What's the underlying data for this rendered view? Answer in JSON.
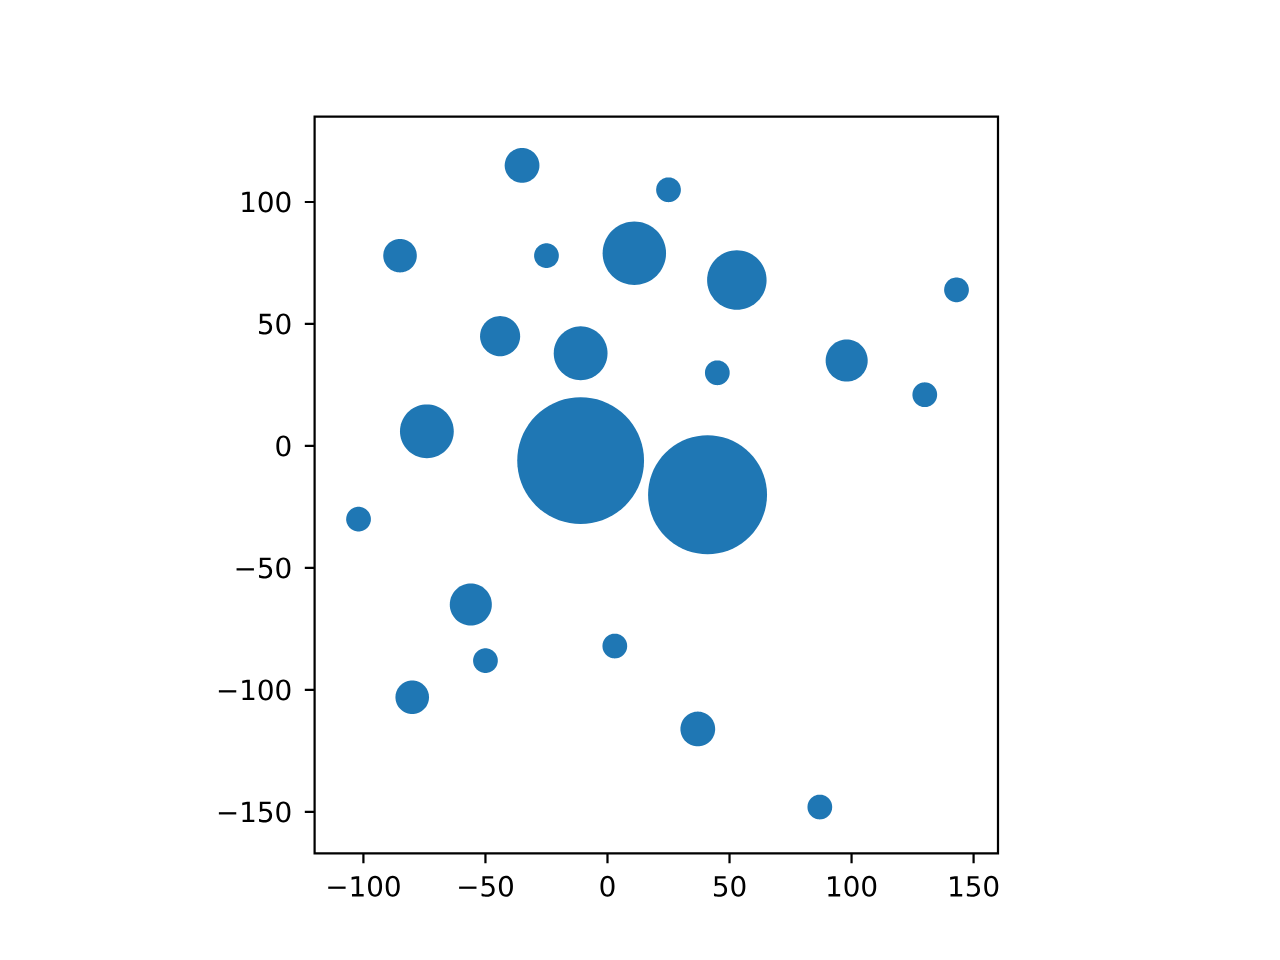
{
  "chart_data": {
    "type": "bubble",
    "x": [
      -35,
      -85,
      -25,
      11,
      -44,
      -11,
      -74,
      -11,
      25,
      53,
      143,
      45,
      98,
      130,
      41,
      -102,
      -56,
      -50,
      -80,
      3,
      37,
      87
    ],
    "values": [
      115,
      78,
      78,
      79,
      45,
      38,
      6,
      -6,
      105,
      68,
      64,
      30,
      35,
      21,
      -20,
      -30,
      -65,
      -88,
      -103,
      -82,
      -116,
      -148
    ],
    "sizes": [
      0.075,
      0.07,
      0.038,
      0.25,
      0.1,
      0.18,
      0.18,
      1,
      0.038,
      0.22,
      0.038,
      0.038,
      0.11,
      0.038,
      0.88,
      0.038,
      0.11,
      0.038,
      0.07,
      0.038,
      0.075,
      0.038
    ],
    "color": "#1f77b4",
    "marker": "circle",
    "xlim": [
      -120,
      160
    ],
    "ylim": [
      -167,
      135
    ],
    "xticks": [
      {
        "value": -100,
        "label": "−100"
      },
      {
        "value": -50,
        "label": "−50"
      },
      0,
      50,
      100,
      150
    ],
    "yticks": [
      {
        "value": -150,
        "label": "−150"
      },
      {
        "value": -100,
        "label": "−100"
      },
      {
        "value": -50,
        "label": "−50"
      },
      0,
      50,
      100
    ]
  }
}
